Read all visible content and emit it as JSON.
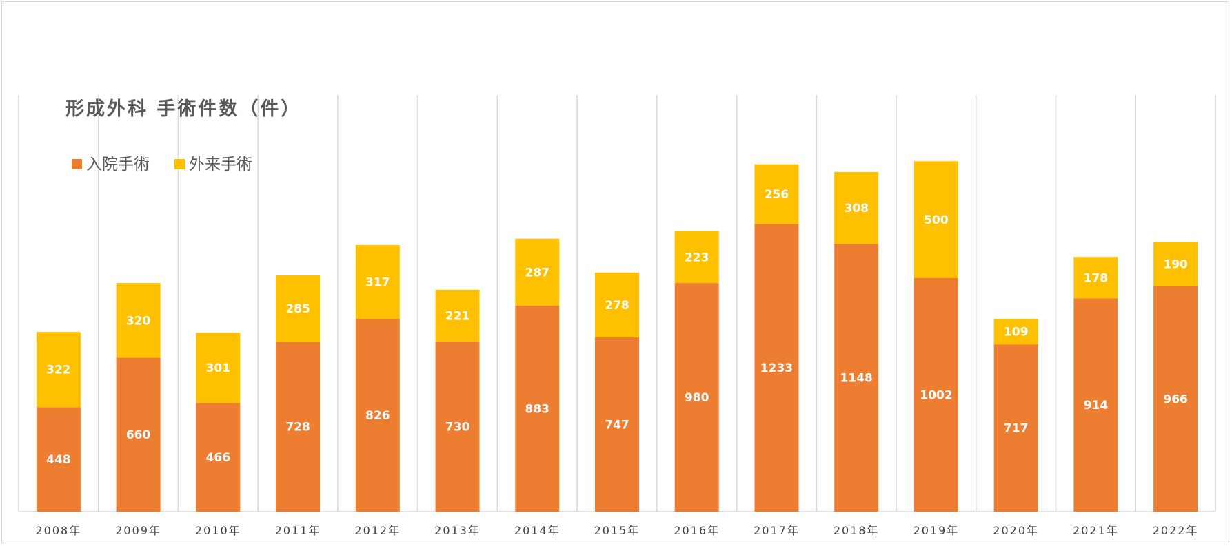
{
  "chart_data": {
    "type": "bar",
    "stacked": true,
    "title": "形成外科  手術件数（件）",
    "categories": [
      "2008年",
      "2009年",
      "2010年",
      "2011年",
      "2012年",
      "2013年",
      "2014年",
      "2015年",
      "2016年",
      "2017年",
      "2018年",
      "2019年",
      "2020年",
      "2021年",
      "2022年"
    ],
    "series": [
      {
        "name": "入院手術",
        "color": "#ED7D31",
        "values": [
          448,
          660,
          466,
          728,
          826,
          730,
          883,
          747,
          980,
          1233,
          1148,
          1002,
          717,
          914,
          966
        ]
      },
      {
        "name": "外来手術",
        "color": "#FFC000",
        "values": [
          322,
          320,
          301,
          285,
          317,
          221,
          287,
          278,
          223,
          256,
          308,
          500,
          109,
          178,
          190
        ]
      }
    ],
    "ylim": [
      0,
      1600
    ],
    "grid": "vertical",
    "legend": "top-left",
    "data_labels": true
  }
}
